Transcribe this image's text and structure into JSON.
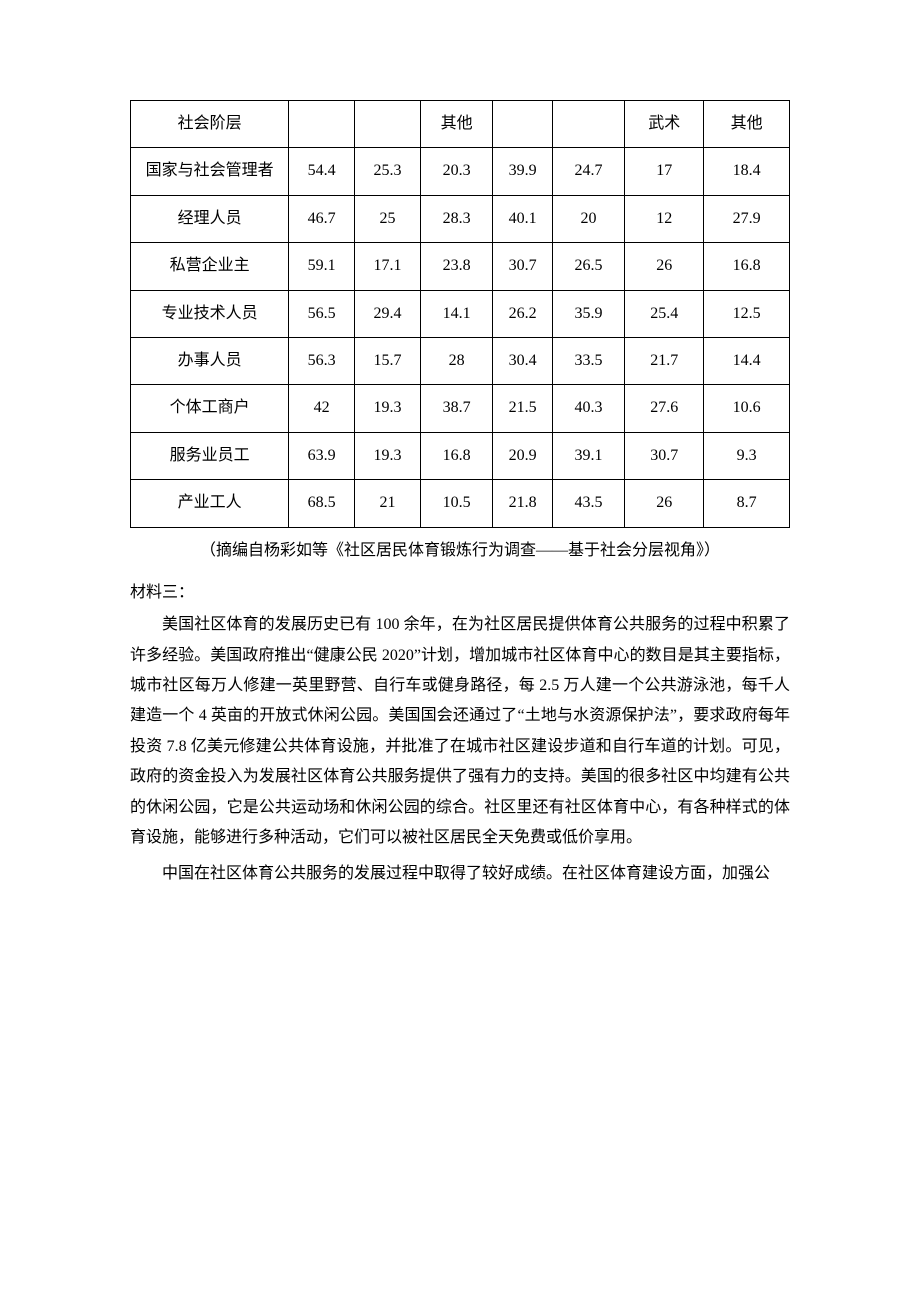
{
  "table": {
    "col_widths_percent": [
      24,
      10,
      10,
      11,
      9,
      11,
      12,
      13
    ],
    "header": {
      "label": "社会阶层",
      "cols": [
        "",
        "",
        "其他",
        "",
        "",
        "武术",
        "其他"
      ]
    },
    "rows": [
      {
        "label": "国家与社会管理者",
        "cells": [
          "54.4",
          "25.3",
          "20.3",
          "39.9",
          "24.7",
          "17",
          "18.4"
        ]
      },
      {
        "label": "经理人员",
        "cells": [
          "46.7",
          "25",
          "28.3",
          "40.1",
          "20",
          "12",
          "27.9"
        ]
      },
      {
        "label": "私营企业主",
        "cells": [
          "59.1",
          "17.1",
          "23.8",
          "30.7",
          "26.5",
          "26",
          "16.8"
        ]
      },
      {
        "label": "专业技术人员",
        "cells": [
          "56.5",
          "29.4",
          "14.1",
          "26.2",
          "35.9",
          "25.4",
          "12.5"
        ]
      },
      {
        "label": "办事人员",
        "cells": [
          "56.3",
          "15.7",
          "28",
          "30.4",
          "33.5",
          "21.7",
          "14.4"
        ]
      },
      {
        "label": "个体工商户",
        "cells": [
          "42",
          "19.3",
          "38.7",
          "21.5",
          "40.3",
          "27.6",
          "10.6"
        ]
      },
      {
        "label": "服务业员工",
        "cells": [
          "63.9",
          "19.3",
          "16.8",
          "20.9",
          "39.1",
          "30.7",
          "9.3"
        ]
      },
      {
        "label": "产业工人",
        "cells": [
          "68.5",
          "21",
          "10.5",
          "21.8",
          "43.5",
          "26",
          "8.7"
        ]
      }
    ]
  },
  "source_note": "（摘编自杨彩如等《社区居民体育锻炼行为调查——基于社会分层视角》）",
  "material_heading": "材料三：",
  "paragraphs": [
    "美国社区体育的发展历史已有 100 余年，在为社区居民提供体育公共服务的过程中积累了许多经验。美国政府推出“健康公民 2020”计划，增加城市社区体育中心的数目是其主要指标，城市社区每万人修建一英里野营、自行车或健身路径，每 2.5 万人建一个公共游泳池，每千人建造一个 4 英亩的开放式休闲公园。美国国会还通过了“土地与水资源保护法”，要求政府每年投资 7.8 亿美元修建公共体育设施，并批准了在城市社区建设步道和自行车道的计划。可见，政府的资金投入为发展社区体育公共服务提供了强有力的支持。美国的很多社区中均建有公共的休闲公园，它是公共运动场和休闲公园的综合。社区里还有社区体育中心，有各种样式的体育设施，能够进行多种活动，它们可以被社区居民全天免费或低价享用。",
    "中国在社区体育公共服务的发展过程中取得了较好成绩。在社区体育建设方面，加强公"
  ]
}
